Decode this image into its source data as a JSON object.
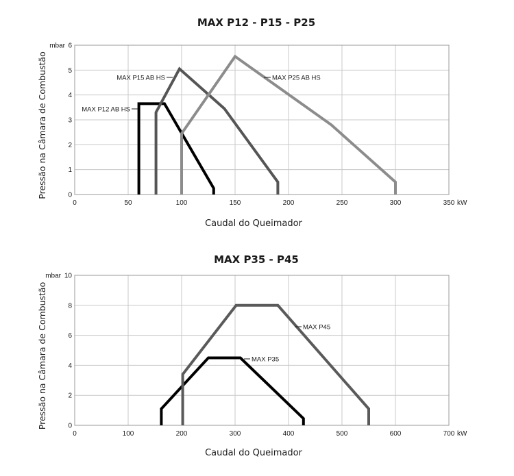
{
  "chart_data": [
    {
      "type": "line",
      "title": "MAX P12 - P15 - P25",
      "xlabel": "Caudal do Queimador",
      "ylabel": "Pressão na Câmara de Combustão",
      "x_unit": "kW",
      "y_unit": "mbar",
      "xlim": [
        0,
        350
      ],
      "ylim": [
        0,
        6
      ],
      "x_ticks": [
        0,
        50,
        100,
        150,
        200,
        250,
        300,
        350
      ],
      "y_ticks": [
        0,
        1,
        2,
        3,
        4,
        5,
        6
      ],
      "grid": true,
      "series": [
        {
          "name": "MAX P12 AB HS",
          "color": "#000000",
          "x": [
            60,
            60,
            84,
            130,
            130
          ],
          "y": [
            0,
            3.65,
            3.65,
            0.25,
            0
          ]
        },
        {
          "name": "MAX P15 AB HS",
          "color": "#555555",
          "x": [
            76,
            76,
            98,
            140,
            190,
            190
          ],
          "y": [
            0,
            3.3,
            5.05,
            3.45,
            0.5,
            0
          ]
        },
        {
          "name": "MAX P25 AB HS",
          "color": "#8c8c8c",
          "x": [
            100,
            100,
            150,
            240,
            300,
            300
          ],
          "y": [
            0,
            2.45,
            5.55,
            2.8,
            0.5,
            0
          ]
        }
      ]
    },
    {
      "type": "line",
      "title": "MAX P35 - P45",
      "xlabel": "Caudal do Queimador",
      "ylabel": "Pressão na Câmara de Combustão",
      "x_unit": "kW",
      "y_unit": "mbar",
      "xlim": [
        0,
        700
      ],
      "ylim": [
        0,
        10
      ],
      "x_ticks": [
        0,
        100,
        200,
        300,
        400,
        500,
        600,
        700
      ],
      "y_ticks": [
        0,
        2,
        4,
        6,
        8,
        10
      ],
      "grid": true,
      "series": [
        {
          "name": "MAX P35",
          "color": "#000000",
          "x": [
            162,
            162,
            250,
            310,
            428,
            428
          ],
          "y": [
            0,
            1.1,
            4.5,
            4.5,
            0.45,
            0
          ]
        },
        {
          "name": "MAX P45",
          "color": "#5a5a5a",
          "x": [
            202,
            202,
            302,
            380,
            550,
            550
          ],
          "y": [
            0,
            3.4,
            8,
            8,
            1.1,
            0
          ]
        }
      ]
    }
  ]
}
